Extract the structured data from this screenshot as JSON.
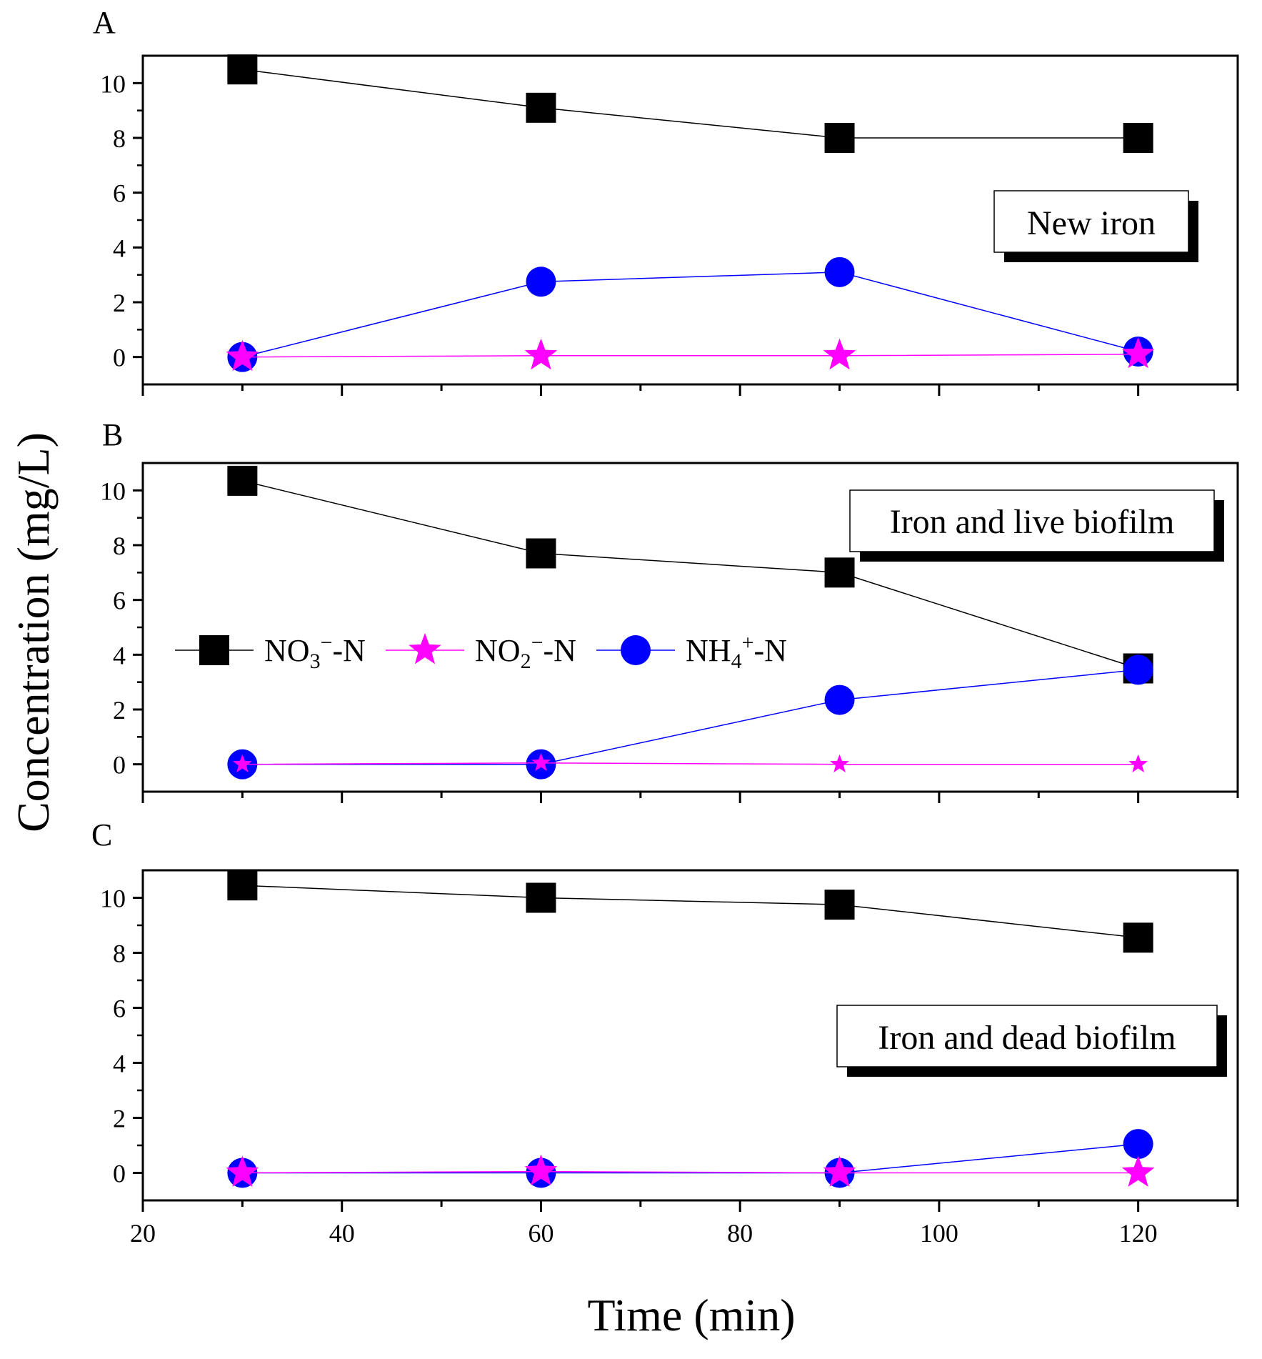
{
  "chart_data": {
    "type": "line",
    "xlabel": "Time (min)",
    "ylabel": "Concentration (mg/L)",
    "xlim": [
      20,
      130
    ],
    "x_ticks": [
      20,
      40,
      60,
      80,
      100,
      120
    ],
    "ylim": [
      -1,
      11
    ],
    "y_ticks": [
      0,
      2,
      4,
      6,
      8,
      10
    ],
    "x": [
      30,
      60,
      90,
      120
    ],
    "colors": {
      "nitrate": "#000000",
      "nitrite": "#ff00ff",
      "ammonium": "#0000ff"
    },
    "legend": {
      "placement": "panel B, left",
      "entries": [
        {
          "key": "nitrate",
          "base": "NO",
          "sub": "3",
          "sup": "−",
          "suffix": "-N",
          "marker": "square"
        },
        {
          "key": "nitrite",
          "base": "NO",
          "sub": "2",
          "sup": "−",
          "suffix": "-N",
          "marker": "star"
        },
        {
          "key": "ammonium",
          "base": "NH",
          "sub": "4",
          "sup": "+",
          "suffix": "-N",
          "marker": "circle"
        }
      ]
    },
    "panels": [
      {
        "letter": "A",
        "label": "New  iron",
        "series": [
          {
            "key": "nitrate",
            "values": [
              10.5,
              9.1,
              8.0,
              8.0
            ]
          },
          {
            "key": "ammonium",
            "values": [
              0.0,
              2.75,
              3.1,
              0.2
            ]
          },
          {
            "key": "nitrite",
            "values": [
              0.0,
              0.05,
              0.05,
              0.1
            ]
          }
        ]
      },
      {
        "letter": "B",
        "label": "Iron and live biofilm",
        "series": [
          {
            "key": "nitrate",
            "values": [
              10.35,
              7.7,
              7.0,
              3.5
            ]
          },
          {
            "key": "ammonium",
            "values": [
              0.0,
              0.0,
              2.35,
              3.45
            ]
          },
          {
            "key": "nitrite",
            "values": [
              0.0,
              0.05,
              0.0,
              0.0
            ]
          }
        ]
      },
      {
        "letter": "C",
        "label": "Iron and dead biofilm",
        "series": [
          {
            "key": "nitrate",
            "values": [
              10.45,
              10.0,
              9.75,
              8.55
            ]
          },
          {
            "key": "ammonium",
            "values": [
              0.0,
              0.0,
              0.0,
              1.05
            ]
          },
          {
            "key": "nitrite",
            "values": [
              0.0,
              0.05,
              0.0,
              0.0
            ]
          }
        ]
      }
    ]
  }
}
